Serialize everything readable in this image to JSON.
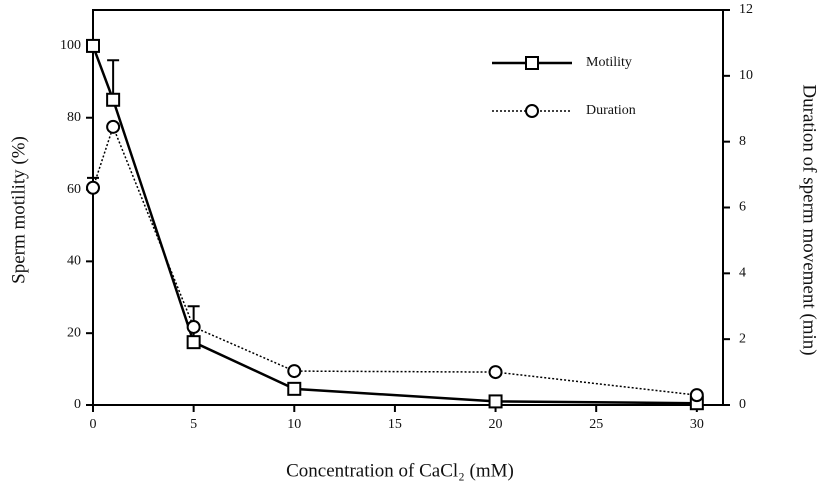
{
  "chart_data": {
    "type": "line",
    "x_label": "Concentration of CaCl₂ (mM)",
    "y_label": "Sperm motility (%)",
    "y2_label": "Duration of sperm movement (min)",
    "x": [
      0,
      1,
      5,
      10,
      20,
      30
    ],
    "series": [
      {
        "name": "Motility",
        "color": "#000000",
        "line_style": "solid",
        "marker": "square",
        "axis": "y",
        "values": [
          100,
          85,
          17.5,
          4.5,
          1,
          0.5
        ],
        "errors": [
          null,
          11,
          10,
          null,
          null,
          null
        ]
      },
      {
        "name": "Duration",
        "color": "#000000",
        "line_style": "dotted",
        "marker": "circle",
        "axis": "y2",
        "values": [
          6.6,
          8.45,
          2.37,
          1.03,
          1.0,
          0.3
        ],
        "errors": [
          0.3,
          null,
          null,
          null,
          null,
          null
        ]
      }
    ],
    "xlim": [
      0,
      31.3
    ],
    "xticks": [
      0,
      5,
      10,
      15,
      20,
      25,
      30
    ],
    "ylim": [
      0,
      110
    ],
    "yticks": [
      0,
      20,
      40,
      60,
      80,
      100
    ],
    "y2lim": [
      0,
      12
    ],
    "y2ticks": [
      0,
      2,
      4,
      6,
      8,
      10,
      12
    ],
    "legend": "upper right",
    "grid": false
  }
}
